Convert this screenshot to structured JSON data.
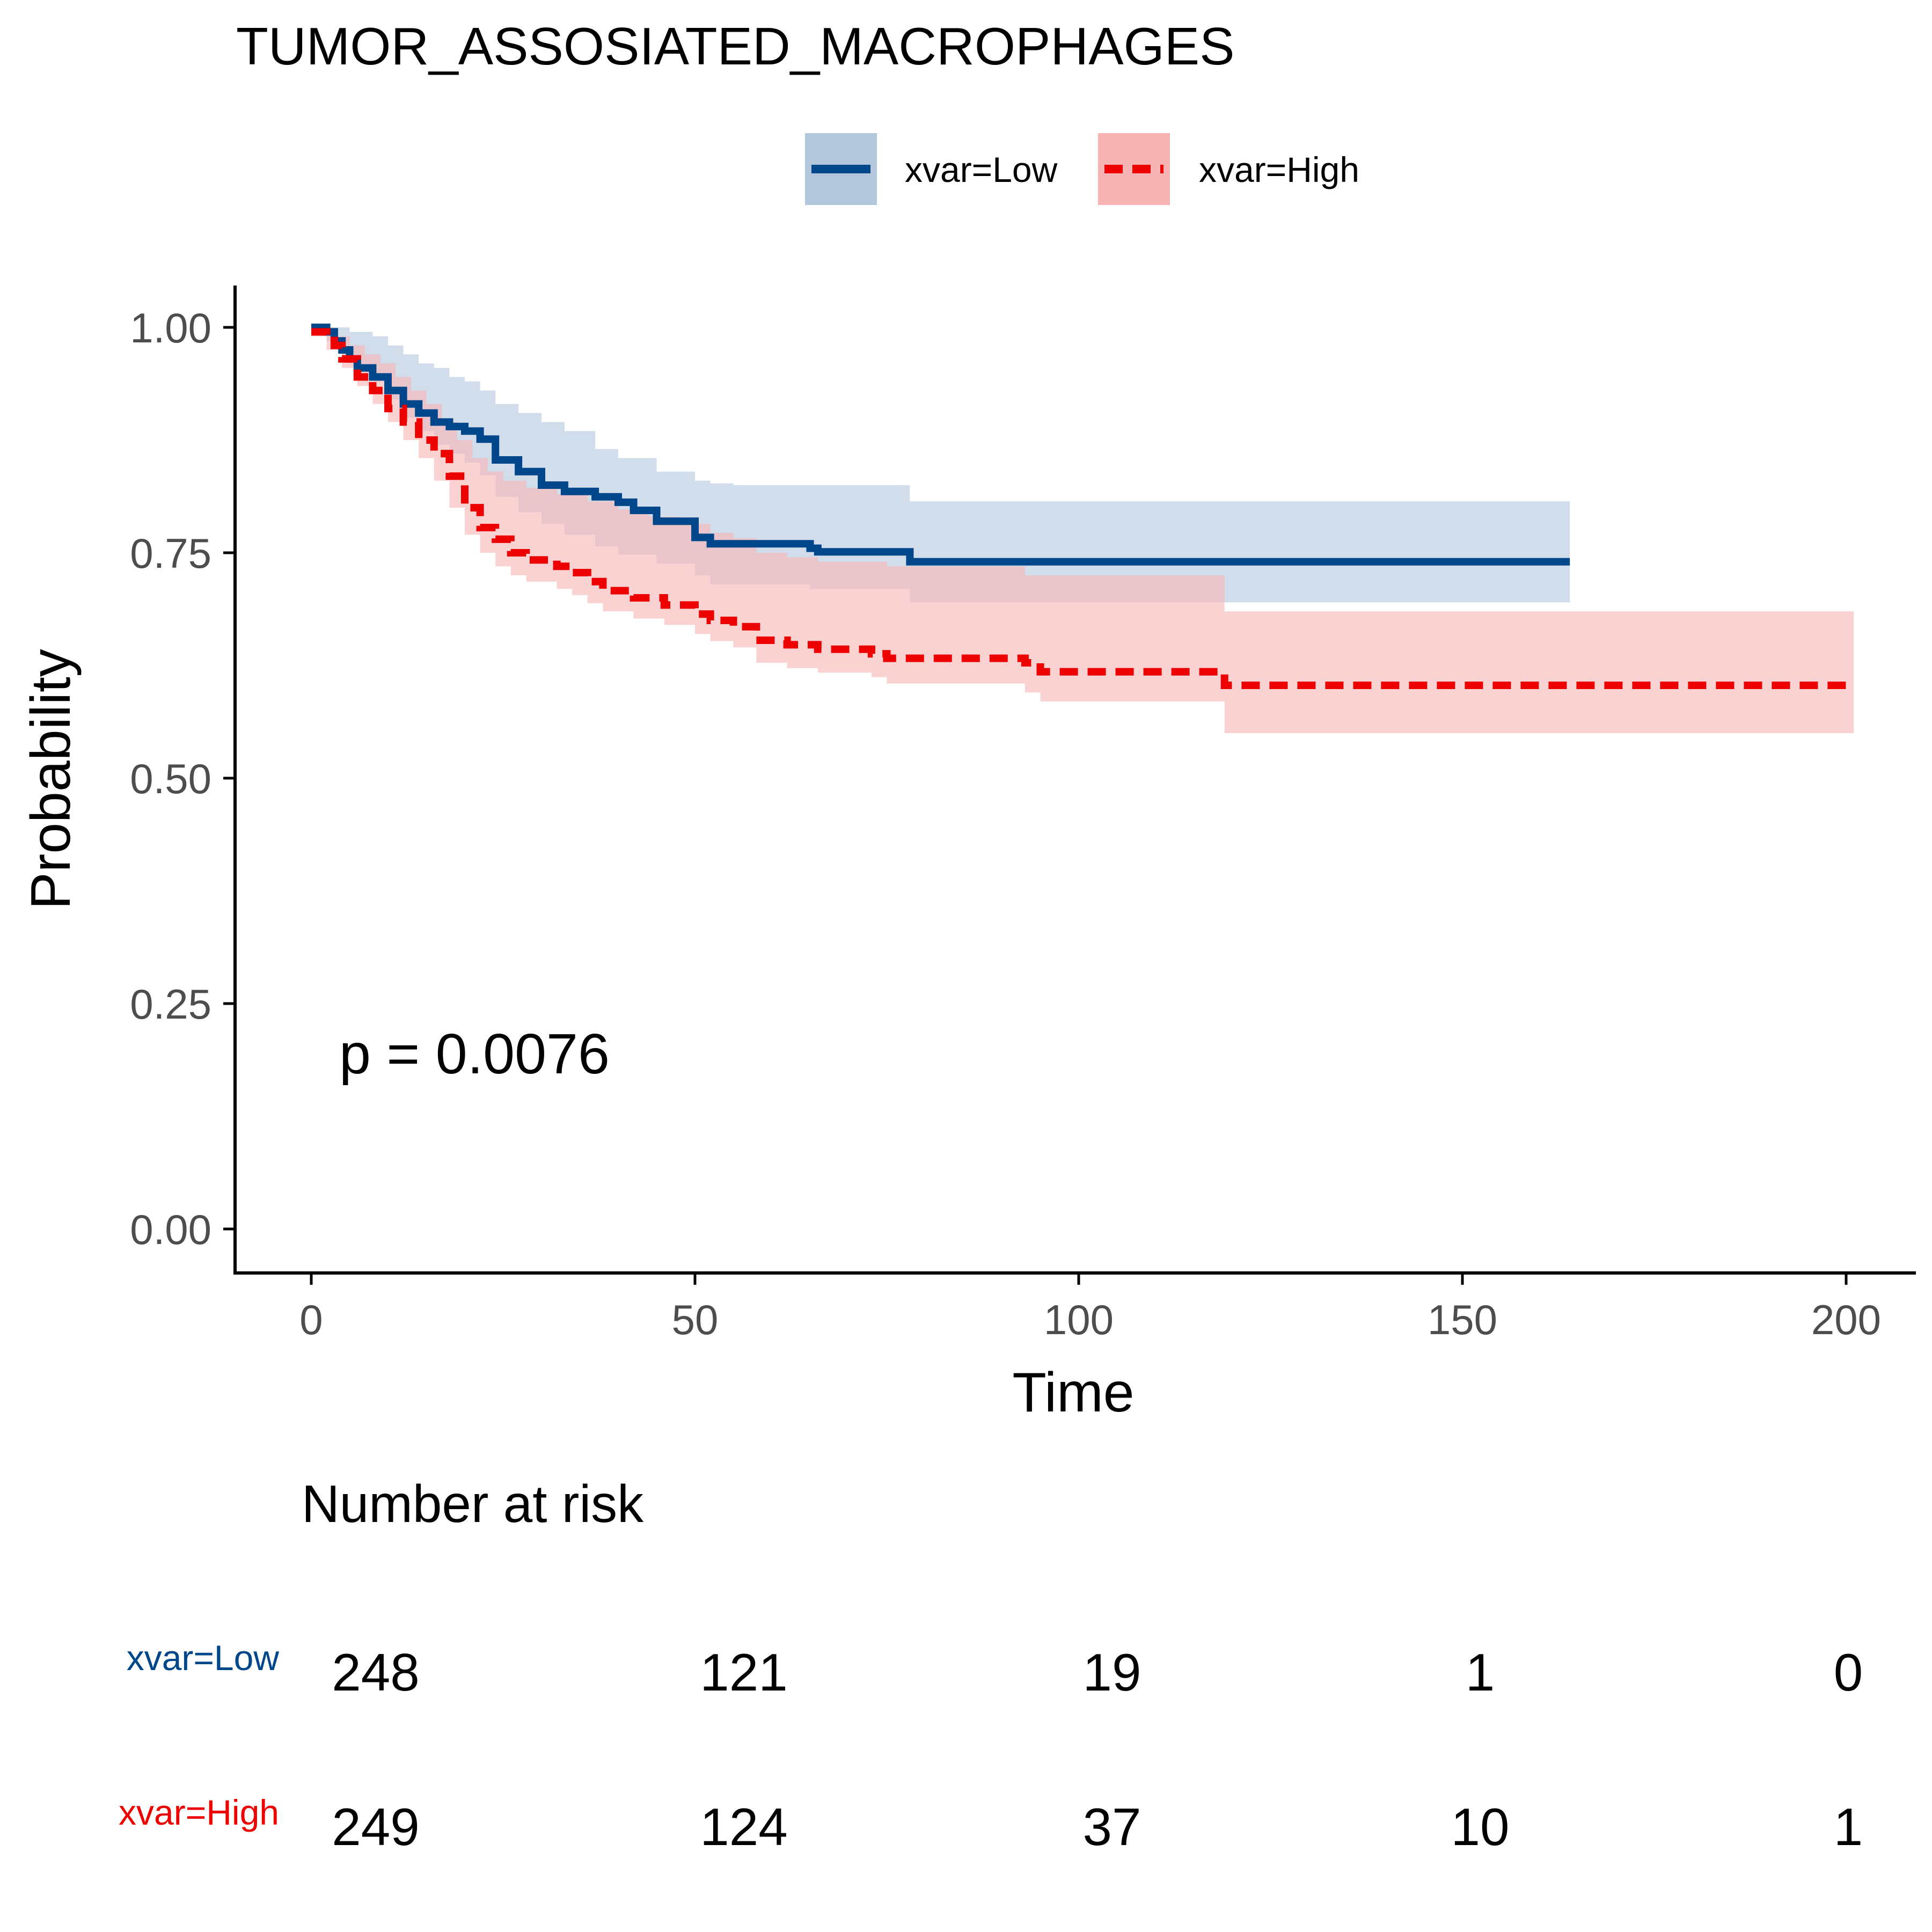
{
  "chart_data": {
    "type": "line",
    "title": "TUMOR_ASSOSIATED_MACROPHAGES",
    "xlabel": "Time",
    "ylabel": "Probability",
    "xlim": [
      -10,
      210
    ],
    "ylim": [
      -0.05,
      1.05
    ],
    "x_ticks": [
      0,
      50,
      100,
      150,
      200
    ],
    "x_tick_labels": [
      "0",
      "50",
      "100",
      "150",
      "200"
    ],
    "y_ticks": [
      0,
      0.25,
      0.5,
      0.75,
      1
    ],
    "y_tick_labels": [
      "0.00",
      "0.25",
      "0.50",
      "0.75",
      "1.00"
    ],
    "legend_position": "top",
    "grid": false,
    "annotation": "p = 0.0076",
    "series": [
      {
        "name": "xvar=Low",
        "color": "#00468B",
        "band_color": "#B3C7DC",
        "dash": "solid",
        "steps": [
          [
            0,
            1.0
          ],
          [
            2,
            0.995
          ],
          [
            3,
            0.985
          ],
          [
            4,
            0.975
          ],
          [
            5,
            0.965
          ],
          [
            6,
            0.955
          ],
          [
            8,
            0.945
          ],
          [
            10,
            0.93
          ],
          [
            12,
            0.915
          ],
          [
            14,
            0.905
          ],
          [
            16,
            0.895
          ],
          [
            18,
            0.89
          ],
          [
            20,
            0.885
          ],
          [
            22,
            0.876
          ],
          [
            24,
            0.853
          ],
          [
            27,
            0.84
          ],
          [
            30,
            0.825
          ],
          [
            33,
            0.818
          ],
          [
            37,
            0.812
          ],
          [
            40,
            0.806
          ],
          [
            42,
            0.797
          ],
          [
            45,
            0.785
          ],
          [
            50,
            0.767
          ],
          [
            52,
            0.76
          ],
          [
            65,
            0.755
          ],
          [
            66,
            0.751
          ],
          [
            78,
            0.74
          ],
          [
            164,
            0.74
          ]
        ],
        "ci_upper_steps": [
          [
            0,
            1.0
          ],
          [
            5,
            0.995
          ],
          [
            8,
            0.99
          ],
          [
            10,
            0.98
          ],
          [
            12,
            0.97
          ],
          [
            14,
            0.96
          ],
          [
            16,
            0.955
          ],
          [
            18,
            0.945
          ],
          [
            20,
            0.94
          ],
          [
            22,
            0.93
          ],
          [
            24,
            0.915
          ],
          [
            27,
            0.905
          ],
          [
            30,
            0.895
          ],
          [
            33,
            0.885
          ],
          [
            37,
            0.865
          ],
          [
            40,
            0.855
          ],
          [
            45,
            0.84
          ],
          [
            50,
            0.83
          ],
          [
            52,
            0.827
          ],
          [
            55,
            0.825
          ],
          [
            78,
            0.807
          ],
          [
            164,
            0.807
          ]
        ],
        "ci_lower_steps": [
          [
            0,
            1.0
          ],
          [
            2,
            0.985
          ],
          [
            4,
            0.97
          ],
          [
            6,
            0.955
          ],
          [
            8,
            0.94
          ],
          [
            10,
            0.92
          ],
          [
            12,
            0.9
          ],
          [
            14,
            0.885
          ],
          [
            16,
            0.87
          ],
          [
            18,
            0.86
          ],
          [
            20,
            0.85
          ],
          [
            22,
            0.836
          ],
          [
            24,
            0.812
          ],
          [
            27,
            0.795
          ],
          [
            30,
            0.782
          ],
          [
            33,
            0.77
          ],
          [
            37,
            0.757
          ],
          [
            40,
            0.748
          ],
          [
            45,
            0.738
          ],
          [
            50,
            0.725
          ],
          [
            52,
            0.715
          ],
          [
            65,
            0.71
          ],
          [
            78,
            0.695
          ],
          [
            164,
            0.695
          ]
        ],
        "risk_table": [
          248,
          121,
          19,
          1,
          0
        ]
      },
      {
        "name": "xvar=High",
        "color": "#ED0000",
        "band_color": "#F8B4B4",
        "dash": "dashed",
        "steps": [
          [
            0,
            0.995
          ],
          [
            2,
            0.99
          ],
          [
            3,
            0.98
          ],
          [
            4,
            0.965
          ],
          [
            6,
            0.945
          ],
          [
            8,
            0.93
          ],
          [
            10,
            0.91
          ],
          [
            12,
            0.895
          ],
          [
            14,
            0.875
          ],
          [
            16,
            0.86
          ],
          [
            18,
            0.835
          ],
          [
            20,
            0.8
          ],
          [
            22,
            0.778
          ],
          [
            24,
            0.765
          ],
          [
            26,
            0.75
          ],
          [
            28,
            0.742
          ],
          [
            32,
            0.735
          ],
          [
            34,
            0.728
          ],
          [
            36,
            0.718
          ],
          [
            38,
            0.708
          ],
          [
            42,
            0.7
          ],
          [
            46,
            0.692
          ],
          [
            50,
            0.682
          ],
          [
            52,
            0.675
          ],
          [
            55,
            0.668
          ],
          [
            58,
            0.653
          ],
          [
            62,
            0.648
          ],
          [
            66,
            0.643
          ],
          [
            73,
            0.638
          ],
          [
            75,
            0.633
          ],
          [
            93,
            0.628
          ],
          [
            95,
            0.618
          ],
          [
            119,
            0.603
          ],
          [
            201,
            0.603
          ]
        ],
        "ci_upper_steps": [
          [
            0,
            1.0
          ],
          [
            3,
            0.99
          ],
          [
            5,
            0.98
          ],
          [
            7,
            0.97
          ],
          [
            9,
            0.96
          ],
          [
            11,
            0.945
          ],
          [
            13,
            0.93
          ],
          [
            15,
            0.915
          ],
          [
            17,
            0.895
          ],
          [
            19,
            0.875
          ],
          [
            21,
            0.855
          ],
          [
            23,
            0.84
          ],
          [
            25,
            0.83
          ],
          [
            28,
            0.822
          ],
          [
            32,
            0.815
          ],
          [
            36,
            0.807
          ],
          [
            40,
            0.798
          ],
          [
            44,
            0.79
          ],
          [
            48,
            0.782
          ],
          [
            52,
            0.772
          ],
          [
            55,
            0.766
          ],
          [
            58,
            0.75
          ],
          [
            62,
            0.745
          ],
          [
            66,
            0.74
          ],
          [
            75,
            0.735
          ],
          [
            93,
            0.725
          ],
          [
            119,
            0.685
          ],
          [
            201,
            0.685
          ]
        ],
        "ci_lower_steps": [
          [
            0,
            0.99
          ],
          [
            2,
            0.975
          ],
          [
            4,
            0.955
          ],
          [
            6,
            0.935
          ],
          [
            8,
            0.915
          ],
          [
            10,
            0.895
          ],
          [
            12,
            0.875
          ],
          [
            14,
            0.855
          ],
          [
            16,
            0.83
          ],
          [
            18,
            0.8
          ],
          [
            20,
            0.77
          ],
          [
            22,
            0.75
          ],
          [
            24,
            0.735
          ],
          [
            26,
            0.725
          ],
          [
            28,
            0.718
          ],
          [
            32,
            0.71
          ],
          [
            34,
            0.703
          ],
          [
            36,
            0.694
          ],
          [
            38,
            0.685
          ],
          [
            42,
            0.677
          ],
          [
            46,
            0.67
          ],
          [
            50,
            0.66
          ],
          [
            52,
            0.652
          ],
          [
            55,
            0.645
          ],
          [
            58,
            0.628
          ],
          [
            62,
            0.622
          ],
          [
            66,
            0.617
          ],
          [
            73,
            0.612
          ],
          [
            75,
            0.605
          ],
          [
            93,
            0.595
          ],
          [
            95,
            0.585
          ],
          [
            119,
            0.55
          ],
          [
            201,
            0.55
          ]
        ],
        "risk_table": [
          249,
          124,
          37,
          10,
          1
        ]
      }
    ],
    "risk_table": {
      "title": "Number at risk",
      "times": [
        0,
        50,
        100,
        150,
        200
      ]
    }
  }
}
